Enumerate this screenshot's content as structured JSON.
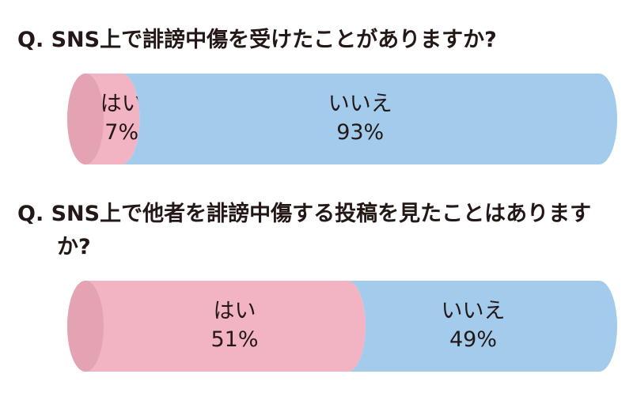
{
  "chart_data": [
    {
      "type": "bar",
      "title": "Q. SNS上で誹謗中傷を受けたことがありますか?",
      "series": [
        {
          "name": "はい",
          "color": "#f2b3c3",
          "values": [
            7
          ],
          "value_labels": [
            "7%"
          ]
        },
        {
          "name": "いいえ",
          "color": "#a3cbec",
          "values": [
            93
          ],
          "value_labels": [
            "93%"
          ]
        }
      ]
    },
    {
      "type": "bar",
      "title": "Q. SNS上で他者を誹謗中傷する投稿を見たことはありますか?",
      "series": [
        {
          "name": "はい",
          "color": "#f2b3c3",
          "values": [
            51
          ],
          "value_labels": [
            "51%"
          ]
        },
        {
          "name": "いいえ",
          "color": "#a3cbec",
          "values": [
            49
          ],
          "value_labels": [
            "49%"
          ]
        }
      ]
    }
  ]
}
